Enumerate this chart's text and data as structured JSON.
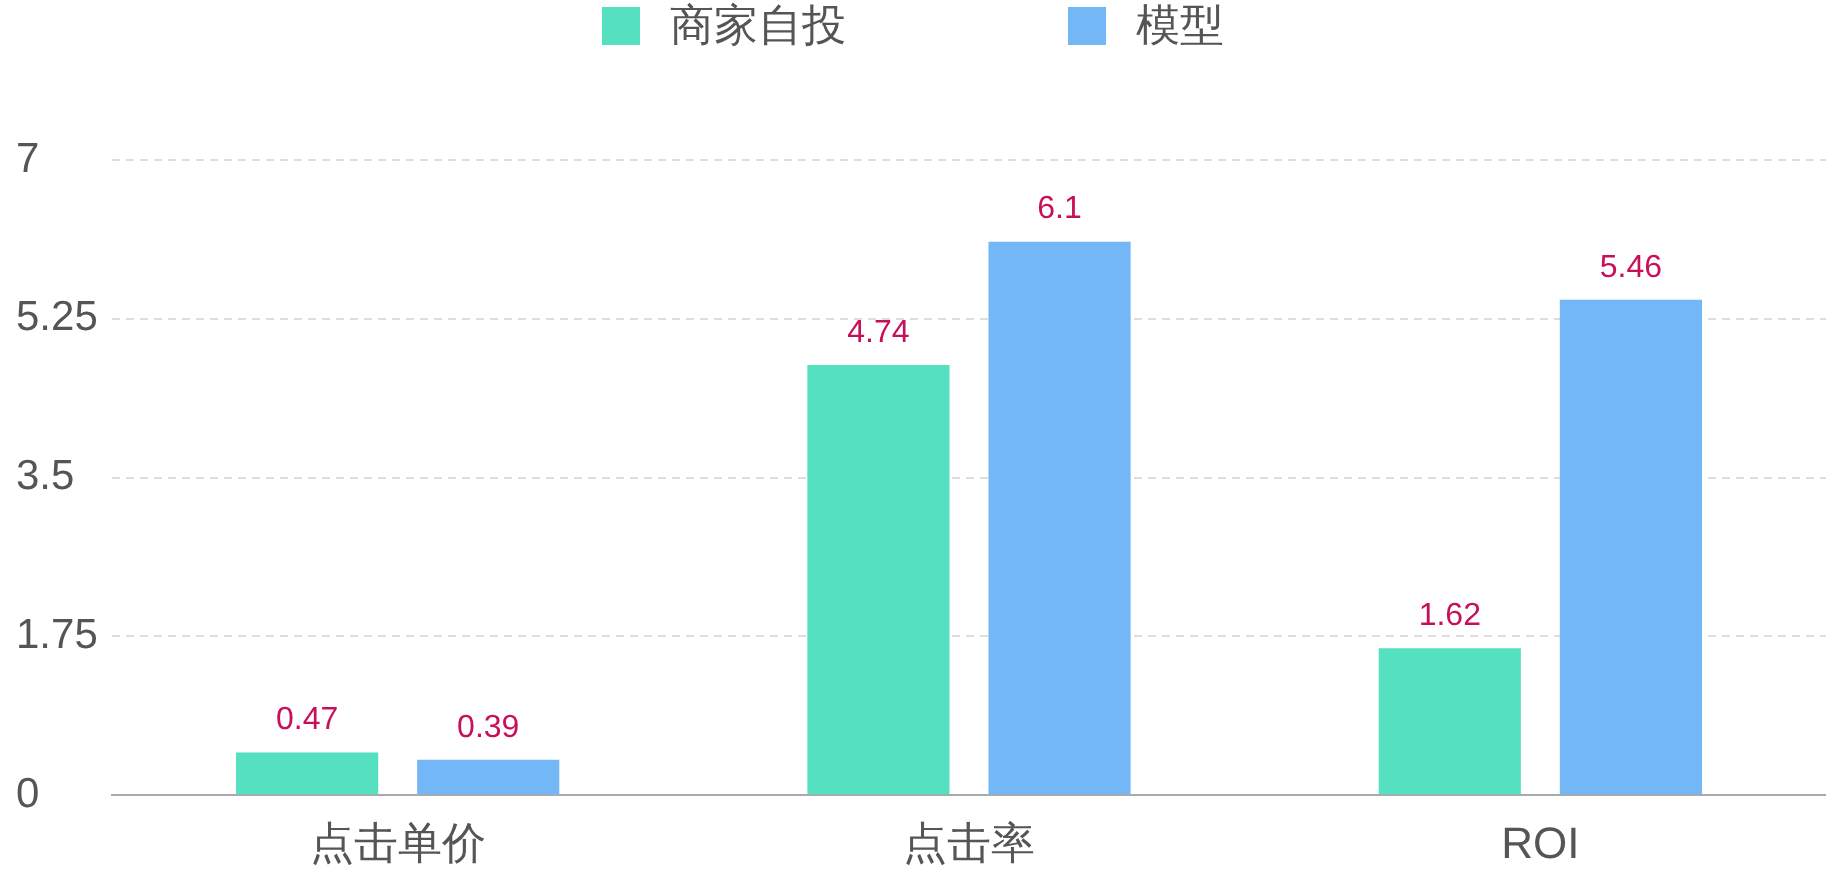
{
  "chart_data": {
    "type": "bar",
    "categories": [
      "点击单价",
      "点击率",
      "ROI"
    ],
    "series": [
      {
        "name": "商家自投",
        "color": "#55e0c0",
        "values": [
          0.47,
          4.74,
          1.62
        ]
      },
      {
        "name": "模型",
        "color": "#74b7f6",
        "values": [
          0.39,
          6.1,
          5.46
        ]
      }
    ],
    "ylim": [
      0,
      7
    ],
    "yticks": [
      0,
      1.75,
      3.5,
      5.25,
      7
    ],
    "grid": "y",
    "legend": "top",
    "data_labels": true
  }
}
